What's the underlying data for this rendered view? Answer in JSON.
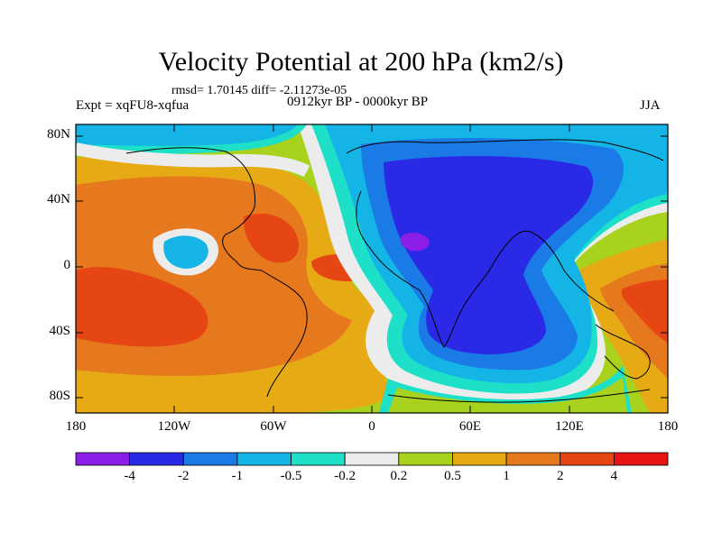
{
  "title": "Velocity Potential at 200 hPa (km2/s)",
  "stats": "rmsd= 1.70145 diff= -2.11273e-05",
  "experiment": "Expt = xqFU8-xqfua",
  "period": "0912kyr BP - 0000kyr BP",
  "season": "JJA",
  "lat_labels": [
    "80N",
    "40N",
    "0",
    "40S",
    "80S"
  ],
  "lon_labels": [
    "180",
    "120W",
    "60W",
    "0",
    "60E",
    "120E",
    "180"
  ],
  "colorbar": {
    "labels": [
      "-4",
      "-2",
      "-1",
      "-0.5",
      "-0.2",
      "0.2",
      "0.5",
      "1",
      "2",
      "4"
    ],
    "colors": [
      "#8a1ee6",
      "#2a2ae6",
      "#1a7ae6",
      "#14b4e6",
      "#1ee0c8",
      "#ececec",
      "#a8d21e",
      "#e6aa14",
      "#e6781e",
      "#e64614",
      "#e61414"
    ]
  }
}
